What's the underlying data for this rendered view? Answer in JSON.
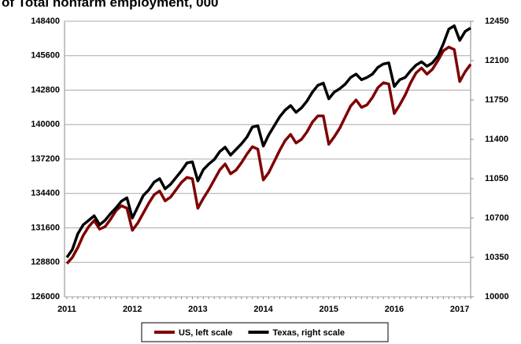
{
  "chart_data": {
    "type": "line",
    "title": "of Total nonfarm employment, 000",
    "categories": [
      "2011",
      null,
      null,
      null,
      null,
      null,
      null,
      null,
      null,
      null,
      null,
      null,
      "2012",
      null,
      null,
      null,
      null,
      null,
      null,
      null,
      null,
      null,
      null,
      null,
      "2013",
      null,
      null,
      null,
      null,
      null,
      null,
      null,
      null,
      null,
      null,
      null,
      "2014",
      null,
      null,
      null,
      null,
      null,
      null,
      null,
      null,
      null,
      null,
      null,
      "2015",
      null,
      null,
      null,
      null,
      null,
      null,
      null,
      null,
      null,
      null,
      null,
      "2016",
      null,
      null,
      null,
      null,
      null,
      null,
      null,
      null,
      null,
      null,
      null,
      "2017",
      null,
      null
    ],
    "series": [
      {
        "name": "US, left scale",
        "color": "#7f0000",
        "values": [
          128700,
          129200,
          130000,
          131000,
          131700,
          132200,
          131500,
          131700,
          132300,
          133000,
          133400,
          133200,
          131400,
          132000,
          132800,
          133600,
          134300,
          134600,
          133800,
          134100,
          134700,
          135300,
          135700,
          135600,
          133200,
          134000,
          134700,
          135500,
          136300,
          136800,
          136000,
          136300,
          136900,
          137600,
          138200,
          138000,
          135500,
          136100,
          137000,
          137900,
          138700,
          139200,
          138500,
          138800,
          139400,
          140200,
          140700,
          140700,
          138400,
          139000,
          139700,
          140600,
          141500,
          142000,
          141400,
          141600,
          142200,
          143000,
          143400,
          143300,
          140900,
          141600,
          142400,
          143400,
          144200,
          144600,
          144100,
          144500,
          145200,
          146000,
          146300,
          146100,
          143500,
          144300,
          144900
        ]
      },
      {
        "name": "Texas, right scale",
        "color": "#000000",
        "axis": "y2",
        "values": [
          10350,
          10420,
          10560,
          10640,
          10680,
          10720,
          10640,
          10680,
          10740,
          10790,
          10850,
          10880,
          10700,
          10800,
          10900,
          10950,
          11020,
          11050,
          10960,
          11000,
          11060,
          11120,
          11190,
          11200,
          11030,
          11130,
          11180,
          11220,
          11290,
          11330,
          11260,
          11310,
          11360,
          11420,
          11510,
          11520,
          11340,
          11440,
          11520,
          11600,
          11660,
          11700,
          11640,
          11680,
          11740,
          11820,
          11880,
          11900,
          11760,
          11820,
          11850,
          11890,
          11950,
          11980,
          11930,
          11950,
          11980,
          12040,
          12070,
          12080,
          11870,
          11930,
          11950,
          12010,
          12060,
          12090,
          12050,
          12080,
          12140,
          12250,
          12380,
          12410,
          12280,
          12360,
          12390
        ]
      }
    ],
    "ylim": [
      126000,
      148400
    ],
    "yticks": [
      126000,
      128800,
      131600,
      134400,
      137200,
      140000,
      142800,
      145600,
      148400
    ],
    "y2lim": [
      10000,
      12450
    ],
    "y2ticks": [
      10000,
      10350,
      10700,
      11050,
      11400,
      11750,
      12100,
      12450
    ],
    "grid": true,
    "legend": "bottom"
  }
}
